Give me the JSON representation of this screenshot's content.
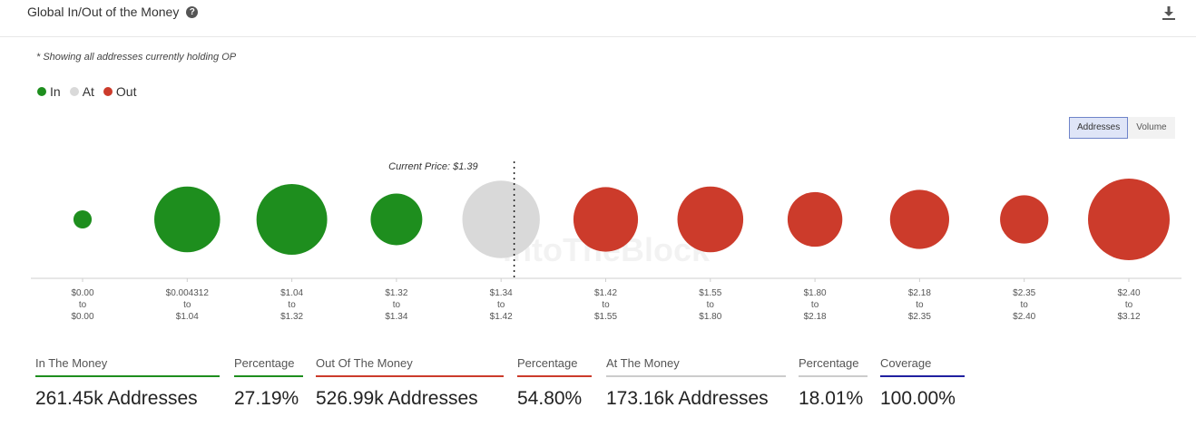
{
  "header": {
    "title": "Global In/Out of the Money",
    "help_icon": "question-circle-icon",
    "download_icon": "download-icon"
  },
  "note": "* Showing all addresses currently holding OP",
  "legend": [
    {
      "label": "In",
      "color": "#1e8e1e"
    },
    {
      "label": "At",
      "color": "#d9d9d9"
    },
    {
      "label": "Out",
      "color": "#cc3b2b"
    }
  ],
  "toggle": {
    "options": [
      "Addresses",
      "Volume"
    ],
    "selected": "Addresses"
  },
  "watermark": "IntoTheBlock",
  "chart_data": {
    "type": "bubble",
    "current_price_label": "Current Price: $1.39",
    "current_price": 1.39,
    "colors": {
      "in": "#1e8e1e",
      "at": "#d9d9d9",
      "out": "#cc3b2b"
    },
    "points": [
      {
        "low": "$0.00",
        "high": "$0.00",
        "status": "in",
        "size": 1.0
      },
      {
        "low": "$0.004312",
        "high": "$1.04",
        "status": "in",
        "size": 13.0
      },
      {
        "low": "$1.04",
        "high": "$1.32",
        "status": "in",
        "size": 15.0
      },
      {
        "low": "$1.32",
        "high": "$1.34",
        "status": "in",
        "size": 8.0
      },
      {
        "low": "$1.34",
        "high": "$1.42",
        "status": "at",
        "size": 18.0
      },
      {
        "low": "$1.42",
        "high": "$1.55",
        "status": "out",
        "size": 12.5
      },
      {
        "low": "$1.55",
        "high": "$1.80",
        "status": "out",
        "size": 13.0
      },
      {
        "low": "$1.80",
        "high": "$2.18",
        "status": "out",
        "size": 9.0
      },
      {
        "low": "$2.18",
        "high": "$2.35",
        "status": "out",
        "size": 10.5
      },
      {
        "low": "$2.35",
        "high": "$2.40",
        "status": "out",
        "size": 7.0
      },
      {
        "low": "$2.40",
        "high": "$3.12",
        "status": "out",
        "size": 20.0
      }
    ]
  },
  "stats": [
    {
      "label": "In The Money",
      "value": "261.45k Addresses",
      "color": "#1e8e1e"
    },
    {
      "label": "Percentage",
      "value": "27.19%",
      "color": "#1e8e1e"
    },
    {
      "label": "Out Of The Money",
      "value": "526.99k Addresses",
      "color": "#cc3b2b"
    },
    {
      "label": "Percentage",
      "value": "54.80%",
      "color": "#cc3b2b"
    },
    {
      "label": "At The Money",
      "value": "173.16k Addresses",
      "color": "#cccccc"
    },
    {
      "label": "Percentage",
      "value": "18.01%",
      "color": "#cccccc"
    },
    {
      "label": "Coverage",
      "value": "100.00%",
      "color": "#2020a0"
    }
  ]
}
